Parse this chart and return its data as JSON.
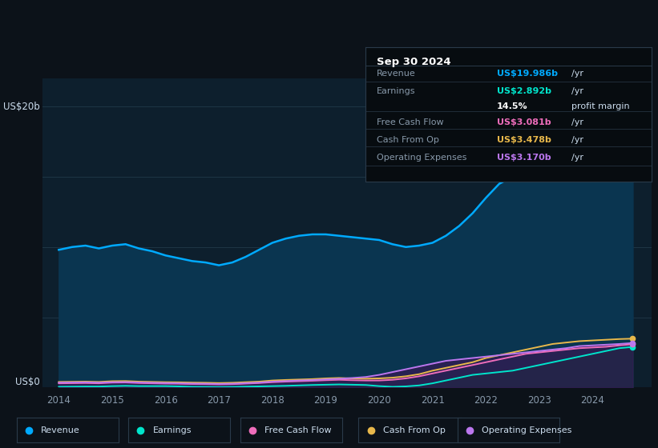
{
  "background_color": "#0c1219",
  "plot_bg_color": "#0d1f2d",
  "years": [
    2014,
    2014.25,
    2014.5,
    2014.75,
    2015,
    2015.25,
    2015.5,
    2015.75,
    2016,
    2016.25,
    2016.5,
    2016.75,
    2017,
    2017.25,
    2017.5,
    2017.75,
    2018,
    2018.25,
    2018.5,
    2018.75,
    2019,
    2019.25,
    2019.5,
    2019.75,
    2020,
    2020.25,
    2020.5,
    2020.75,
    2021,
    2021.25,
    2021.5,
    2021.75,
    2022,
    2022.25,
    2022.5,
    2022.75,
    2023,
    2023.25,
    2023.5,
    2023.75,
    2024,
    2024.25,
    2024.5,
    2024.75
  ],
  "revenue": [
    9.8,
    10.0,
    10.1,
    9.9,
    10.1,
    10.2,
    9.9,
    9.7,
    9.4,
    9.2,
    9.0,
    8.9,
    8.7,
    8.9,
    9.3,
    9.8,
    10.3,
    10.6,
    10.8,
    10.9,
    10.9,
    10.8,
    10.7,
    10.6,
    10.5,
    10.2,
    10.0,
    10.1,
    10.3,
    10.8,
    11.5,
    12.4,
    13.5,
    14.5,
    15.0,
    15.8,
    16.5,
    17.2,
    17.8,
    18.5,
    19.2,
    19.6,
    19.9,
    19.986
  ],
  "earnings": [
    0.05,
    0.06,
    0.07,
    0.07,
    0.1,
    0.12,
    0.1,
    0.1,
    0.1,
    0.08,
    0.05,
    0.04,
    0.03,
    0.04,
    0.06,
    0.08,
    0.1,
    0.12,
    0.15,
    0.18,
    0.2,
    0.22,
    0.2,
    0.18,
    0.1,
    0.05,
    0.08,
    0.15,
    0.3,
    0.5,
    0.7,
    0.9,
    1.0,
    1.1,
    1.2,
    1.4,
    1.6,
    1.8,
    2.0,
    2.2,
    2.4,
    2.6,
    2.8,
    2.892
  ],
  "free_cash_flow": [
    0.3,
    0.31,
    0.32,
    0.3,
    0.35,
    0.36,
    0.32,
    0.3,
    0.28,
    0.27,
    0.25,
    0.24,
    0.22,
    0.24,
    0.28,
    0.32,
    0.38,
    0.42,
    0.45,
    0.48,
    0.52,
    0.55,
    0.52,
    0.5,
    0.5,
    0.55,
    0.65,
    0.8,
    1.0,
    1.2,
    1.4,
    1.6,
    1.8,
    2.0,
    2.2,
    2.4,
    2.5,
    2.6,
    2.7,
    2.8,
    2.85,
    2.9,
    3.0,
    3.081
  ],
  "cash_from_op": [
    0.4,
    0.41,
    0.42,
    0.4,
    0.45,
    0.46,
    0.42,
    0.4,
    0.38,
    0.37,
    0.35,
    0.34,
    0.32,
    0.34,
    0.38,
    0.42,
    0.5,
    0.54,
    0.57,
    0.6,
    0.65,
    0.68,
    0.65,
    0.63,
    0.65,
    0.7,
    0.8,
    0.95,
    1.2,
    1.4,
    1.6,
    1.8,
    2.1,
    2.3,
    2.5,
    2.7,
    2.9,
    3.1,
    3.2,
    3.3,
    3.35,
    3.4,
    3.45,
    3.478
  ],
  "operating_expenses": [
    0.35,
    0.36,
    0.37,
    0.35,
    0.38,
    0.39,
    0.36,
    0.34,
    0.32,
    0.3,
    0.28,
    0.27,
    0.25,
    0.27,
    0.31,
    0.35,
    0.42,
    0.46,
    0.5,
    0.53,
    0.58,
    0.62,
    0.68,
    0.75,
    0.9,
    1.1,
    1.3,
    1.5,
    1.7,
    1.9,
    2.0,
    2.1,
    2.2,
    2.3,
    2.4,
    2.5,
    2.6,
    2.7,
    2.8,
    2.95,
    3.0,
    3.05,
    3.1,
    3.17
  ],
  "revenue_color": "#00aaff",
  "earnings_color": "#00e5cc",
  "free_cash_flow_color": "#ee6dbb",
  "cash_from_op_color": "#e8b84b",
  "operating_expenses_color": "#bb77ee",
  "revenue_fill_color": "#0a3550",
  "earnings_fill_color": "#003d35",
  "operating_expenses_fill_color": "#3d1555",
  "ylim_max": 22,
  "info_box_bg": "#070c10",
  "info_box_border": "#2a3a4a",
  "text_gray": "#8899aa",
  "info_box": {
    "title": "Sep 30 2024",
    "rows": [
      {
        "label": "Revenue",
        "colored": "US$19.986b",
        "suffix": " /yr",
        "value_color": "#00aaff"
      },
      {
        "label": "Earnings",
        "colored": "US$2.892b",
        "suffix": " /yr",
        "value_color": "#00e5cc"
      },
      {
        "label": "",
        "colored": "14.5%",
        "suffix": " profit margin",
        "value_color": "#ffffff",
        "bold_colored": true
      },
      {
        "label": "Free Cash Flow",
        "colored": "US$3.081b",
        "suffix": " /yr",
        "value_color": "#ee6dbb"
      },
      {
        "label": "Cash From Op",
        "colored": "US$3.478b",
        "suffix": " /yr",
        "value_color": "#e8b84b"
      },
      {
        "label": "Operating Expenses",
        "colored": "US$3.170b",
        "suffix": " /yr",
        "value_color": "#bb77ee"
      }
    ]
  },
  "legend_items": [
    {
      "label": "Revenue",
      "color": "#00aaff"
    },
    {
      "label": "Earnings",
      "color": "#00e5cc"
    },
    {
      "label": "Free Cash Flow",
      "color": "#ee6dbb"
    },
    {
      "label": "Cash From Op",
      "color": "#e8b84b"
    },
    {
      "label": "Operating Expenses",
      "color": "#bb77ee"
    }
  ]
}
